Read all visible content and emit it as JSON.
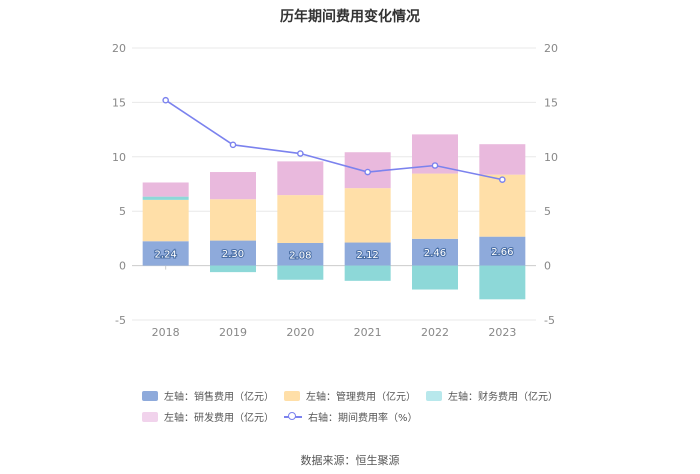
{
  "chart_data": {
    "type": "bar",
    "title": "历年期间费用变化情况",
    "categories": [
      "2018",
      "2019",
      "2020",
      "2021",
      "2022",
      "2023"
    ],
    "ylim_left": [
      -5,
      20
    ],
    "ylim_right": [
      -5,
      20
    ],
    "yticks": [
      20,
      15,
      10,
      5,
      0,
      -5
    ],
    "stacked": true,
    "series": [
      {
        "name": "左轴：销售费用（亿元）",
        "axis": "left",
        "color": "#8eaadb",
        "values": [
          2.24,
          2.3,
          2.08,
          2.12,
          2.46,
          2.66
        ],
        "show_labels": true
      },
      {
        "name": "左轴：管理费用（亿元）",
        "axis": "left",
        "color": "#ffdfa8",
        "values": [
          3.8,
          3.8,
          4.4,
          5.0,
          6.0,
          5.7
        ]
      },
      {
        "name": "左轴：财务费用（亿元）",
        "axis": "left",
        "color": "#8dd8d8",
        "values": [
          0.3,
          -0.6,
          -1.3,
          -1.4,
          -2.2,
          -3.1
        ]
      },
      {
        "name": "左轴：研发费用（亿元）",
        "axis": "left",
        "color": "#e9b9dd",
        "values": [
          1.3,
          2.5,
          3.1,
          3.3,
          3.6,
          2.8
        ]
      },
      {
        "name": "右轴：期间费用率（%）",
        "axis": "right",
        "type": "line",
        "color": "#7b82ee",
        "values": [
          15.2,
          11.1,
          10.3,
          8.6,
          9.2,
          7.9
        ]
      }
    ],
    "legend": [
      {
        "label": "左轴：销售费用（亿元）",
        "color": "#8eaadb",
        "kind": "box"
      },
      {
        "label": "左轴：管理费用（亿元）",
        "color": "#ffdfa8",
        "kind": "box"
      },
      {
        "label": "左轴：财务费用（亿元）",
        "color": "#b8e8ec",
        "kind": "box"
      },
      {
        "label": "左轴：研发费用（亿元）",
        "color": "#f1d3ec",
        "kind": "box"
      },
      {
        "label": "右轴：期间费用率（%）",
        "color": "#7b82ee",
        "kind": "line"
      }
    ],
    "source": "数据来源：恒生聚源"
  }
}
